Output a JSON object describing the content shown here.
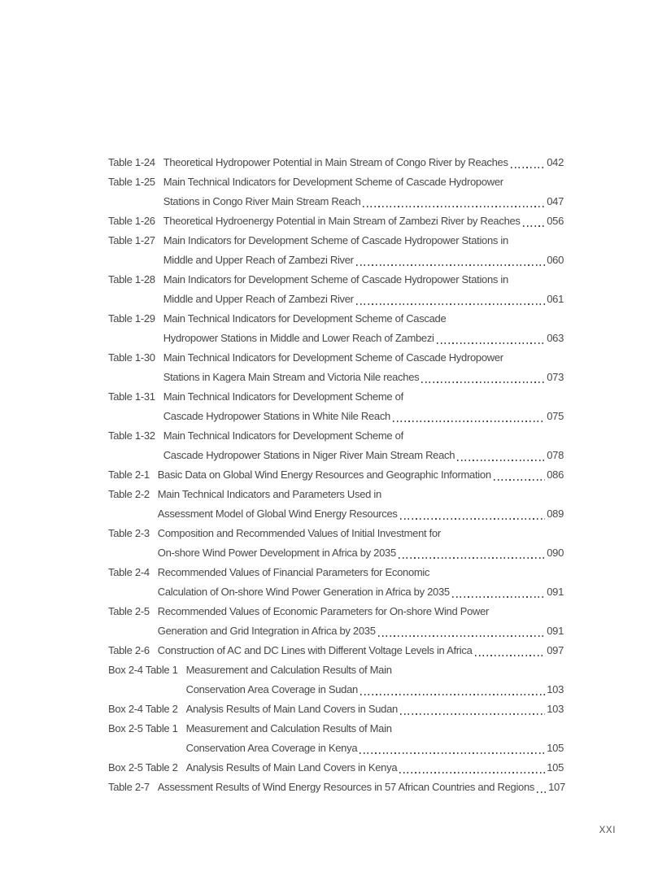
{
  "page": {
    "footer_page_number": "XXI"
  },
  "theme": {
    "text_color": "#474747",
    "background_color": "#ffffff"
  },
  "toc": {
    "entries": [
      {
        "label": "Table 1-24",
        "lines": [
          "Theoretical Hydropower Potential in Main Stream of Congo River by Reaches"
        ],
        "page": "042"
      },
      {
        "label": "Table 1-25",
        "lines": [
          "Main Technical Indicators for Development Scheme of Cascade Hydropower",
          "Stations in Congo River Main Stream Reach"
        ],
        "page": "047"
      },
      {
        "label": "Table 1-26",
        "lines": [
          "Theoretical Hydroenergy Potential in Main Stream of Zambezi River by Reaches"
        ],
        "page": "056"
      },
      {
        "label": "Table 1-27",
        "lines": [
          "Main Indicators for Development Scheme of Cascade Hydropower Stations in",
          "Middle and Upper Reach of Zambezi River"
        ],
        "page": "060"
      },
      {
        "label": "Table 1-28",
        "lines": [
          "Main Indicators for Development Scheme of Cascade Hydropower Stations in",
          "Middle and Upper Reach of Zambezi River"
        ],
        "page": "061"
      },
      {
        "label": "Table 1-29",
        "lines": [
          "Main Technical Indicators for Development Scheme of Cascade",
          "Hydropower Stations in Middle and Lower Reach of Zambezi"
        ],
        "page": "063"
      },
      {
        "label": "Table 1-30",
        "lines": [
          "Main Technical Indicators for Development Scheme of Cascade Hydropower",
          "Stations in Kagera Main Stream and Victoria Nile reaches"
        ],
        "page": "073"
      },
      {
        "label": "Table 1-31",
        "lines": [
          "Main Technical Indicators for Development Scheme of",
          "Cascade Hydropower Stations in White Nile Reach"
        ],
        "page": "075"
      },
      {
        "label": "Table 1-32",
        "lines": [
          "Main Technical Indicators for Development Scheme of",
          "Cascade Hydropower Stations in Niger River Main Stream Reach"
        ],
        "page": "078"
      },
      {
        "label": "Table 2-1",
        "lines": [
          "Basic Data on Global Wind Energy Resources and Geographic Information"
        ],
        "page": "086"
      },
      {
        "label": "Table 2-2",
        "lines": [
          "Main Technical Indicators and Parameters Used in",
          "Assessment Model of Global Wind Energy Resources"
        ],
        "page": "089"
      },
      {
        "label": "Table 2-3",
        "lines": [
          "Composition and Recommended Values of Initial Investment for",
          "On-shore Wind Power Development in Africa by 2035"
        ],
        "page": "090"
      },
      {
        "label": "Table 2-4",
        "lines": [
          "Recommended Values of Financial Parameters for Economic",
          "Calculation of On-shore Wind Power Generation in Africa by 2035"
        ],
        "page": "091"
      },
      {
        "label": "Table 2-5",
        "lines": [
          "Recommended Values of Economic Parameters for On-shore Wind Power",
          "Generation and Grid Integration in Africa by 2035"
        ],
        "page": "091"
      },
      {
        "label": "Table 2-6",
        "lines": [
          "Construction of AC and DC Lines with Different Voltage Levels in Africa"
        ],
        "page": "097"
      },
      {
        "label": "Box 2-4 Table 1",
        "lines": [
          "Measurement and Calculation Results of Main",
          "Conservation Area Coverage in Sudan"
        ],
        "page": "103"
      },
      {
        "label": "Box 2-4 Table 2",
        "lines": [
          "Analysis Results of Main Land Covers in Sudan"
        ],
        "page": "103"
      },
      {
        "label": "Box 2-5 Table 1",
        "lines": [
          "Measurement and Calculation Results of Main",
          "Conservation Area Coverage in Kenya"
        ],
        "page": "105"
      },
      {
        "label": "Box 2-5 Table 2",
        "lines": [
          "Analysis Results of Main Land Covers in Kenya"
        ],
        "page": "105"
      },
      {
        "label": "Table 2-7",
        "lines": [
          "Assessment Results of Wind Energy Resources in 57 African Countries and Regions"
        ],
        "page": "107"
      }
    ]
  }
}
